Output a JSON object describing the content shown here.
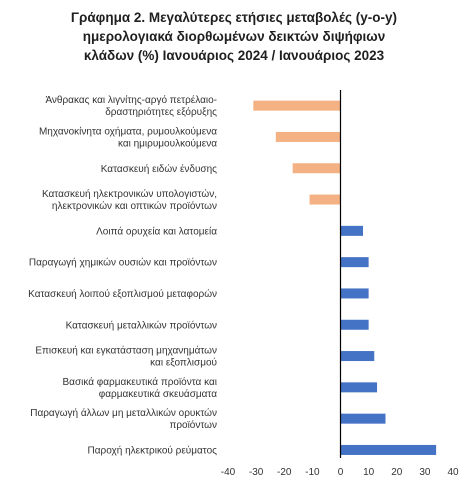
{
  "title_lines": [
    "Γράφημα 2. Μεγαλύτερες ετήσιες μεταβολές (y-o-y)",
    "ημερολογιακά διορθωμένων δεικτών διψήφιων",
    "κλάδων (%)  Ιανουάριος 2024 / Ιανουάριος  2023"
  ],
  "chart_data": {
    "type": "bar",
    "orientation": "horizontal",
    "title": "Γράφημα 2. Μεγαλύτερες ετήσιες μεταβολές (y-o-y) ημερολογιακά διορθωμένων δεικτών διψήφιων κλάδων (%)  Ιανουάριος 2024 / Ιανουάριος  2023",
    "categories": [
      [
        "Άνθρακας και λιγνίτης-αργό πετρέλαιο-",
        "δραστηριότητες εξόρυξης"
      ],
      [
        "Μηχανοκίνητα οχήματα, ρυμουλκούμενα",
        "και ημιρυμουλκούμενα"
      ],
      [
        "Κατασκευή ειδών ένδυσης"
      ],
      [
        "Κατασκευή ηλεκτρονικών υπολογιστών,",
        "ηλεκτρονικών και οπτικών προϊόντων"
      ],
      [
        "Λοιπά ορυχεία και λατομεία"
      ],
      [
        "Παραγωγή χημικών ουσιών και προϊόντων"
      ],
      [
        "Κατασκευή λοιπού εξοπλισμού μεταφορών"
      ],
      [
        "Κατασκευή μεταλλικών προϊόντων"
      ],
      [
        "Επισκευή και εγκατάσταση μηχανημάτων",
        "και εξοπλισμού"
      ],
      [
        "Βασικά φαρμακευτικά προϊόντα και",
        "φαρμακευτικά σκευάσματα"
      ],
      [
        "Παραγωγή άλλων μη μεταλλικών ορυκτών",
        "προϊόντων"
      ],
      [
        "Παροχή ηλεκτρικού ρεύματος"
      ]
    ],
    "values": [
      -31,
      -23,
      -17,
      -11,
      8,
      10,
      10,
      10,
      12,
      13,
      16,
      34
    ],
    "xlim": [
      -40,
      40
    ],
    "xticks": [
      -40,
      -30,
      -20,
      -10,
      0,
      10,
      20,
      30,
      40
    ],
    "grid": false,
    "legend": "none",
    "colors": {
      "negative": "#F4B183",
      "positive": "#4472C4",
      "axis": "#000000"
    }
  }
}
